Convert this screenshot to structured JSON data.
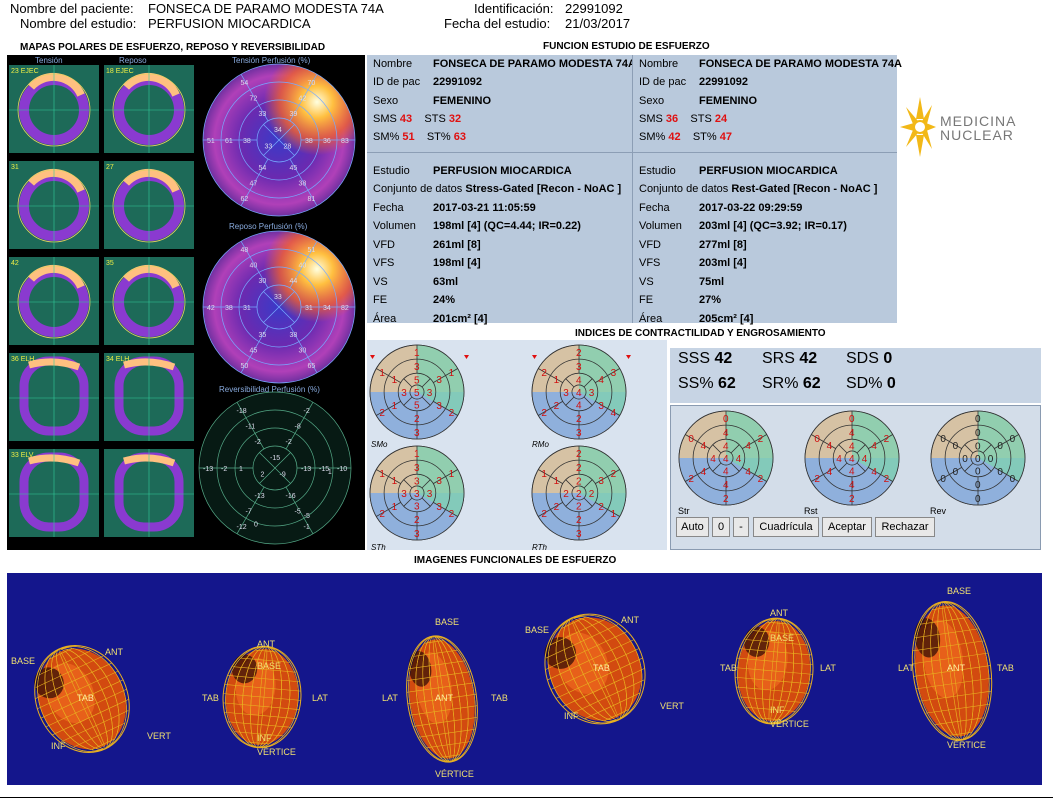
{
  "header": {
    "patient_label": "Nombre del paciente:",
    "patient_name": "FONSECA DE PARAMO MODESTA  74A",
    "study_label": "Nombre del estudio:",
    "study_name": "PERFUSION MIOCARDICA",
    "id_label": "Identificación:",
    "id_value": "22991092",
    "date_label": "Fecha del estudio:",
    "date_value": "21/03/2017"
  },
  "sections": {
    "polar_maps": "MAPAS POLARES DE  ESFUERZO, REPOSO Y REVERSIBILIDAD",
    "function": "FUNCION ESTUDIO DE ESFUERZO",
    "contractility": "INDICES DE CONTRACTILIDAD Y ENGROSAMIENTO",
    "functional_images": "IMAGENES FUNCIONALES DE ESFUERZO"
  },
  "polar": {
    "col_tension": "Tensión",
    "col_reposo": "Reposo",
    "stress_title": "Tensión Perfusión (%)",
    "rest_title": "Reposo Perfusión (%)",
    "rev_title": "Reversibilidad Perfusión (%)",
    "slice_labels": [
      "23 EJEC",
      "18 EJEC",
      "31",
      "27",
      "42",
      "35",
      "36 ELH",
      "34 ELH",
      "33 ELV",
      ""
    ],
    "stress_values": [
      "70",
      "83",
      "81",
      "62",
      "51",
      "54",
      "42",
      "36",
      "38",
      "47",
      "61",
      "72",
      "39",
      "38",
      "45",
      "54",
      "38",
      "33",
      "34",
      "28",
      "33"
    ],
    "rest_values": [
      "51",
      "82",
      "65",
      "50",
      "42",
      "48",
      "40",
      "34",
      "30",
      "45",
      "38",
      "40",
      "44",
      "31",
      "38",
      "35",
      "31",
      "30",
      "33"
    ],
    "rev_values": [
      "-2",
      "-10",
      "-1",
      "-12",
      "-13",
      "-18",
      "-8",
      "-15",
      "-5",
      "-7",
      "-2",
      "-11",
      "-2",
      "-13",
      "-16",
      "-13",
      "1",
      "-2",
      "-15",
      "-9",
      "2",
      "1",
      "-5",
      "0"
    ]
  },
  "stress": {
    "nombre_k": "Nombre",
    "nombre_v": "FONSECA DE PARAMO MODESTA  74A",
    "id_k": "ID de pac",
    "id_v": "22991092",
    "sexo_k": "Sexo",
    "sexo_v": "FEMENINO",
    "sms_k": "SMS",
    "sms_v": "43",
    "sts_k": "STS",
    "sts_v": "32",
    "smp_k": "SM%",
    "smp_v": "51",
    "stp_k": "ST%",
    "stp_v": "63",
    "estudio_k": "Estudio",
    "estudio_v": "PERFUSION MIOCARDICA",
    "conjunto_k": "Conjunto de datos",
    "conjunto_v": "Stress-Gated [Recon - NoAC ]",
    "fecha_k": "Fecha",
    "fecha_v": "2017-03-21 11:05:59",
    "vol_k": "Volumen",
    "vol_v": "198ml [4] (QC=4.44; IR=0.22)",
    "vfd_k": "VFD",
    "vfd_v": "261ml [8]",
    "vfs_k": "VFS",
    "vfs_v": "198ml [4]",
    "vs_k": "VS",
    "vs_v": "63ml",
    "fe_k": "FE",
    "fe_v": "24%",
    "area_k": "Área",
    "area_v": "201cm² [4]"
  },
  "rest": {
    "nombre_k": "Nombre",
    "nombre_v": "FONSECA DE PARAMO MODESTA  74A",
    "id_k": "ID de pac",
    "id_v": "22991092",
    "sexo_k": "Sexo",
    "sexo_v": "FEMENINO",
    "sms_k": "SMS",
    "sms_v": "36",
    "sts_k": "STS",
    "sts_v": "24",
    "smp_k": "SM%",
    "smp_v": "42",
    "stp_k": "ST%",
    "stp_v": "47",
    "estudio_k": "Estudio",
    "estudio_v": "PERFUSION MIOCARDICA",
    "conjunto_k": "Conjunto de datos",
    "conjunto_v": "Rest-Gated [Recon - NoAC ]",
    "fecha_k": "Fecha",
    "fecha_v": "2017-03-22 09:29:59",
    "vol_k": "Volumen",
    "vol_v": "203ml [4] (QC=3.92; IR=0.17)",
    "vfd_k": "VFD",
    "vfd_v": "277ml [8]",
    "vfs_k": "VFS",
    "vfs_v": "203ml [4]",
    "vs_k": "VS",
    "vs_v": "75ml",
    "fe_k": "FE",
    "fe_v": "27%",
    "area_k": "Área",
    "area_v": "205cm² [4]"
  },
  "logo": {
    "line1": "MEDICINA",
    "line2": "NUCLEAR"
  },
  "contract_labels": [
    "SMo",
    "RMo",
    "STh",
    "RTh"
  ],
  "scores": {
    "sss_k": "SSS",
    "sss_v": "42",
    "srs_k": "SRS",
    "srs_v": "42",
    "sds_k": "SDS",
    "sds_v": "0",
    "ssp_k": "SS%",
    "ssp_v": "62",
    "srp_k": "SR%",
    "srp_v": "62",
    "sdp_k": "SD%",
    "sdp_v": "0"
  },
  "small_polar_labels": [
    "Str",
    "Rst",
    "Rev"
  ],
  "buttons": {
    "auto": "Auto",
    "zero": "0",
    "minus": "-",
    "grid": "Cuadrícula",
    "accept": "Aceptar",
    "reject": "Rechazar"
  },
  "heart_labels": {
    "base": "BASE",
    "ant": "ANT",
    "inf": "INF",
    "lat": "LAT",
    "tab": "TAB",
    "vert": "VERT",
    "vertice": "VÉRTICE"
  },
  "colors": {
    "panel_blue": "#b9c9dc",
    "func_bg": "#14168c",
    "accent_red": "#e01010"
  }
}
